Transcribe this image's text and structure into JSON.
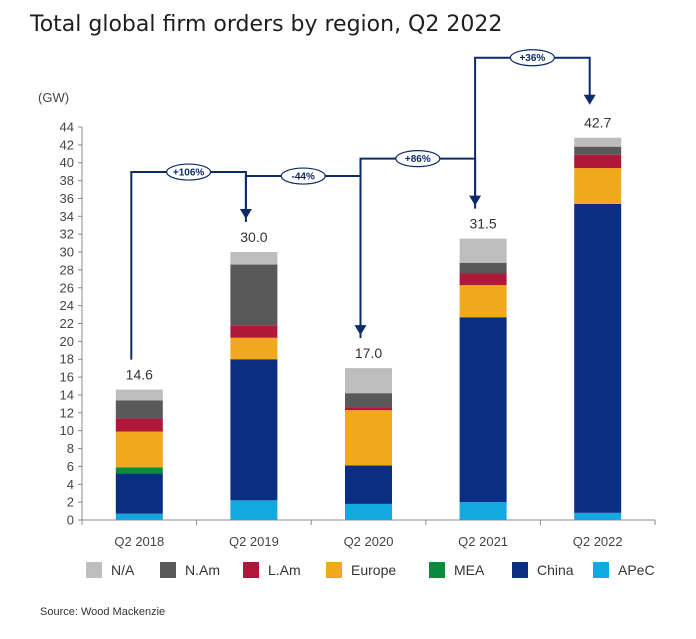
{
  "title": "Total global firm orders by region, Q2 2022",
  "source": "Source: Wood Mackenzie",
  "chart_data": {
    "type": "bar",
    "stacked": true,
    "unit_label": "(GW)",
    "ylim": [
      0,
      44
    ],
    "y_ticks": [
      0,
      2,
      4,
      6,
      8,
      10,
      12,
      14,
      16,
      18,
      20,
      22,
      24,
      26,
      28,
      30,
      32,
      34,
      36,
      38,
      40,
      42,
      44
    ],
    "categories": [
      "Q2 2018",
      "Q2 2019",
      "Q2 2020",
      "Q2 2021",
      "Q2 2022"
    ],
    "series": [
      {
        "name": "APeC",
        "color": "#12a8e0",
        "values": [
          0.7,
          2.2,
          1.8,
          2.0,
          0.8
        ]
      },
      {
        "name": "China",
        "color": "#0a2f82",
        "values": [
          4.5,
          15.8,
          4.3,
          20.7,
          34.6
        ]
      },
      {
        "name": "MEA",
        "color": "#0a8a3a",
        "values": [
          0.7,
          0.0,
          0.0,
          0.0,
          0.0
        ]
      },
      {
        "name": "Europe",
        "color": "#f0a81c",
        "values": [
          4.0,
          2.4,
          6.2,
          3.6,
          4.0
        ]
      },
      {
        "name": "L.Am",
        "color": "#b0173a",
        "values": [
          1.5,
          1.4,
          0.3,
          1.3,
          1.5
        ]
      },
      {
        "name": "N.Am",
        "color": "#595959",
        "values": [
          2.0,
          6.8,
          1.6,
          1.2,
          0.9
        ]
      },
      {
        "name": "N/A",
        "color": "#bdbdbd",
        "values": [
          1.2,
          1.4,
          2.8,
          2.7,
          1.0
        ]
      }
    ],
    "totals": [
      "14.6",
      "30.0",
      "17.0",
      "31.5",
      "42.7"
    ],
    "growth": [
      {
        "from": 0,
        "to": 1,
        "label": "+106%"
      },
      {
        "from": 1,
        "to": 2,
        "label": "-44%"
      },
      {
        "from": 2,
        "to": 3,
        "label": "+86%"
      },
      {
        "from": 3,
        "to": 4,
        "label": "+36%"
      }
    ],
    "legend_order": [
      "N/A",
      "N.Am",
      "L.Am",
      "Europe",
      "MEA",
      "China",
      "APeC"
    ],
    "legend_position": "bottom",
    "grid": false
  }
}
